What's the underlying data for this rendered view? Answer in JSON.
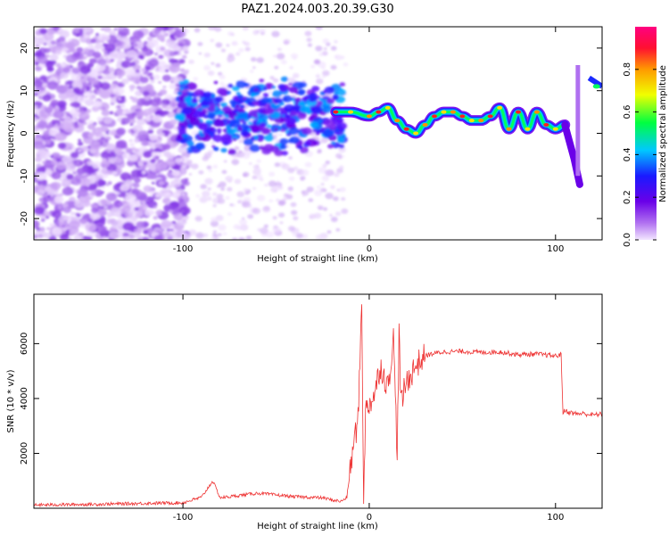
{
  "title": "PAZ1.2024.003.20.39.G30",
  "chart_data": [
    {
      "type": "heatmap",
      "panel": "top",
      "xlabel": "Height of straight line (km)",
      "ylabel": "Frequency (Hz)",
      "xlim": [
        -180,
        125
      ],
      "ylim": [
        -25,
        25
      ],
      "xticks": [
        -100,
        0,
        100
      ],
      "yticks": [
        -20,
        -10,
        0,
        10,
        20
      ],
      "colorbar": {
        "label": "Normalized spectral amplitude",
        "range": [
          0,
          1
        ],
        "ticks": [
          0.0,
          0.2,
          0.4,
          0.6,
          0.8
        ],
        "colors": [
          "#f2e6ff",
          "#b070f0",
          "#6a00e8",
          "#1a1aff",
          "#00c8ff",
          "#00ff40",
          "#f0ff00",
          "#ff9a00",
          "#ff1030",
          "#ff0080"
        ]
      },
      "signal_track": {
        "x": [
          -18,
          -10,
          0,
          5,
          10,
          15,
          20,
          25,
          30,
          35,
          40,
          45,
          50,
          55,
          60,
          65,
          70,
          75,
          80,
          85,
          90,
          95,
          100,
          105
        ],
        "y": [
          5,
          5,
          4,
          5,
          6,
          3,
          1,
          0,
          2,
          4,
          5,
          5,
          4,
          3,
          3,
          4,
          6,
          1,
          5,
          1,
          5,
          2,
          1,
          2
        ]
      }
    },
    {
      "type": "line",
      "panel": "bottom",
      "xlabel": "Height of straight line (km)",
      "ylabel": "SNR (10 * v/v)",
      "xlim": [
        -180,
        125
      ],
      "ylim": [
        0,
        7800
      ],
      "xticks": [
        -100,
        0,
        100
      ],
      "yticks": [
        2000,
        4000,
        6000
      ],
      "series": [
        {
          "color": "#ee3333",
          "x": [
            -180,
            -150,
            -120,
            -100,
            -90,
            -84,
            -80,
            -60,
            -40,
            -25,
            -20,
            -15,
            -12,
            -10,
            -9,
            -8,
            -6,
            -4,
            -3,
            -2,
            0,
            3,
            6,
            10,
            13,
            15,
            16,
            17,
            20,
            25,
            30,
            35,
            40,
            50,
            60,
            70,
            80,
            90,
            100,
            103,
            104,
            105,
            110,
            115,
            120,
            125
          ],
          "y": [
            120,
            140,
            180,
            200,
            400,
            1000,
            380,
            550,
            420,
            380,
            300,
            250,
            400,
            1500,
            2000,
            2500,
            3200,
            7600,
            200,
            3500,
            3800,
            4200,
            5200,
            4400,
            6200,
            2000,
            6400,
            3800,
            4600,
            5200,
            5550,
            5650,
            5700,
            5720,
            5680,
            5700,
            5600,
            5620,
            5550,
            5600,
            3500,
            3550,
            3450,
            3450,
            3400,
            3430
          ]
        }
      ]
    }
  ]
}
